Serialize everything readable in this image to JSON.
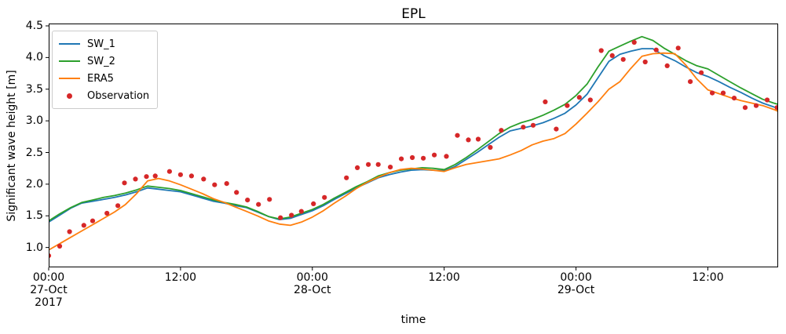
{
  "figure": {
    "background": "#ffffff",
    "frame_color": "#000000"
  },
  "chart_data": {
    "type": "line",
    "title": "EPL",
    "xlabel": "time",
    "ylabel": "Significant wave height [m]",
    "grid": false,
    "legend_position": "upper-left",
    "x_origin": "27-Oct 2017 00:00",
    "x_unit": "hours",
    "xlim_hours": [
      0,
      66.4
    ],
    "ylim": [
      0.686,
      4.537
    ],
    "y_ticks": [
      "1.0",
      "1.5",
      "2.0",
      "2.5",
      "3.0",
      "3.5",
      "4.0",
      "4.5"
    ],
    "x_ticks": [
      {
        "t": 0,
        "lines": [
          "00:00",
          "27-Oct",
          "2017"
        ]
      },
      {
        "t": 12,
        "lines": [
          "12:00"
        ]
      },
      {
        "t": 24,
        "lines": [
          "00:00",
          "28-Oct"
        ]
      },
      {
        "t": 36,
        "lines": [
          "12:00"
        ]
      },
      {
        "t": 48,
        "lines": [
          "00:00",
          "29-Oct"
        ]
      },
      {
        "t": 60,
        "lines": [
          "12:00"
        ]
      }
    ],
    "series": [
      {
        "name": "SW_1",
        "color": "#1f77b4",
        "kind": "line",
        "x_start": 0,
        "x_step": 1,
        "x_last": 66.4,
        "y": [
          1.4,
          1.51,
          1.62,
          1.7,
          1.73,
          1.76,
          1.79,
          1.83,
          1.88,
          1.94,
          1.92,
          1.9,
          1.88,
          1.83,
          1.78,
          1.73,
          1.7,
          1.66,
          1.63,
          1.56,
          1.49,
          1.44,
          1.46,
          1.52,
          1.58,
          1.66,
          1.76,
          1.85,
          1.94,
          2.02,
          2.1,
          2.15,
          2.19,
          2.22,
          2.23,
          2.22,
          2.21,
          2.28,
          2.39,
          2.5,
          2.62,
          2.74,
          2.84,
          2.88,
          2.92,
          2.97,
          3.04,
          3.12,
          3.25,
          3.42,
          3.68,
          3.94,
          4.05,
          4.1,
          4.14,
          4.14,
          4.03,
          3.95,
          3.85,
          3.76,
          3.7,
          3.62,
          3.53,
          3.45,
          3.36,
          3.28,
          3.22,
          3.2
        ]
      },
      {
        "name": "SW_2",
        "color": "#2ca02c",
        "kind": "line",
        "x_start": 0,
        "x_step": 1,
        "x_last": 66.4,
        "y": [
          1.42,
          1.53,
          1.63,
          1.71,
          1.75,
          1.79,
          1.82,
          1.86,
          1.91,
          1.97,
          1.95,
          1.93,
          1.9,
          1.85,
          1.8,
          1.75,
          1.71,
          1.68,
          1.64,
          1.57,
          1.49,
          1.45,
          1.48,
          1.54,
          1.6,
          1.68,
          1.78,
          1.87,
          1.96,
          2.04,
          2.13,
          2.18,
          2.22,
          2.24,
          2.26,
          2.25,
          2.23,
          2.31,
          2.42,
          2.54,
          2.67,
          2.8,
          2.9,
          2.97,
          3.02,
          3.09,
          3.17,
          3.26,
          3.4,
          3.58,
          3.85,
          4.1,
          4.18,
          4.26,
          4.33,
          4.27,
          4.15,
          4.05,
          3.95,
          3.87,
          3.82,
          3.72,
          3.62,
          3.52,
          3.43,
          3.34,
          3.28,
          3.26
        ]
      },
      {
        "name": "ERA5",
        "color": "#ff7f0e",
        "kind": "line",
        "x_start": 0,
        "x_step": 1,
        "x_last": 66.4,
        "y": [
          0.96,
          1.06,
          1.16,
          1.26,
          1.36,
          1.46,
          1.56,
          1.68,
          1.85,
          2.05,
          2.09,
          2.05,
          1.99,
          1.92,
          1.85,
          1.77,
          1.71,
          1.64,
          1.57,
          1.5,
          1.42,
          1.37,
          1.35,
          1.4,
          1.48,
          1.58,
          1.7,
          1.81,
          1.93,
          2.03,
          2.11,
          2.18,
          2.23,
          2.25,
          2.24,
          2.22,
          2.2,
          2.26,
          2.31,
          2.34,
          2.37,
          2.4,
          2.46,
          2.53,
          2.62,
          2.68,
          2.72,
          2.8,
          2.95,
          3.12,
          3.3,
          3.5,
          3.62,
          3.83,
          4.02,
          4.06,
          4.07,
          4.06,
          3.88,
          3.66,
          3.49,
          3.43,
          3.37,
          3.32,
          3.28,
          3.24,
          3.18,
          3.15
        ]
      },
      {
        "name": "Observation",
        "color": "#d62728",
        "kind": "scatter",
        "points": [
          [
            0,
            0.87
          ],
          [
            1,
            1.02
          ],
          [
            1.9,
            1.25
          ],
          [
            3.2,
            1.35
          ],
          [
            4,
            1.42
          ],
          [
            5.3,
            1.54
          ],
          [
            6.3,
            1.66
          ],
          [
            6.9,
            2.02
          ],
          [
            7.9,
            2.08
          ],
          [
            8.9,
            2.12
          ],
          [
            9.7,
            2.13
          ],
          [
            11,
            2.2
          ],
          [
            12,
            2.15
          ],
          [
            13,
            2.13
          ],
          [
            14.1,
            2.08
          ],
          [
            15.1,
            1.99
          ],
          [
            16.2,
            2.01
          ],
          [
            17.1,
            1.87
          ],
          [
            18.1,
            1.75
          ],
          [
            19.1,
            1.68
          ],
          [
            20.1,
            1.76
          ],
          [
            21.1,
            1.47
          ],
          [
            22.1,
            1.51
          ],
          [
            23,
            1.57
          ],
          [
            24.1,
            1.69
          ],
          [
            25.1,
            1.79
          ],
          [
            27.1,
            2.1
          ],
          [
            28.1,
            2.26
          ],
          [
            29.1,
            2.31
          ],
          [
            30,
            2.31
          ],
          [
            31.1,
            2.27
          ],
          [
            32.1,
            2.4
          ],
          [
            33.1,
            2.42
          ],
          [
            34.1,
            2.41
          ],
          [
            35.1,
            2.46
          ],
          [
            36.2,
            2.44
          ],
          [
            37.2,
            2.77
          ],
          [
            38.2,
            2.7
          ],
          [
            39.1,
            2.71
          ],
          [
            40.2,
            2.58
          ],
          [
            41.2,
            2.85
          ],
          [
            43.2,
            2.9
          ],
          [
            44.1,
            2.93
          ],
          [
            45.2,
            3.3
          ],
          [
            46.2,
            2.87
          ],
          [
            47.2,
            3.24
          ],
          [
            48.3,
            3.37
          ],
          [
            49.3,
            3.33
          ],
          [
            50.3,
            4.11
          ],
          [
            51.3,
            4.03
          ],
          [
            52.3,
            3.97
          ],
          [
            53.3,
            4.24
          ],
          [
            54.3,
            3.93
          ],
          [
            55.3,
            4.12
          ],
          [
            56.3,
            3.87
          ],
          [
            57.3,
            4.15
          ],
          [
            58.4,
            3.62
          ],
          [
            59.4,
            3.76
          ],
          [
            60.4,
            3.44
          ],
          [
            61.4,
            3.44
          ],
          [
            62.4,
            3.36
          ],
          [
            63.4,
            3.21
          ],
          [
            64.4,
            3.24
          ],
          [
            65.4,
            3.33
          ],
          [
            66.3,
            3.21
          ]
        ]
      }
    ]
  }
}
